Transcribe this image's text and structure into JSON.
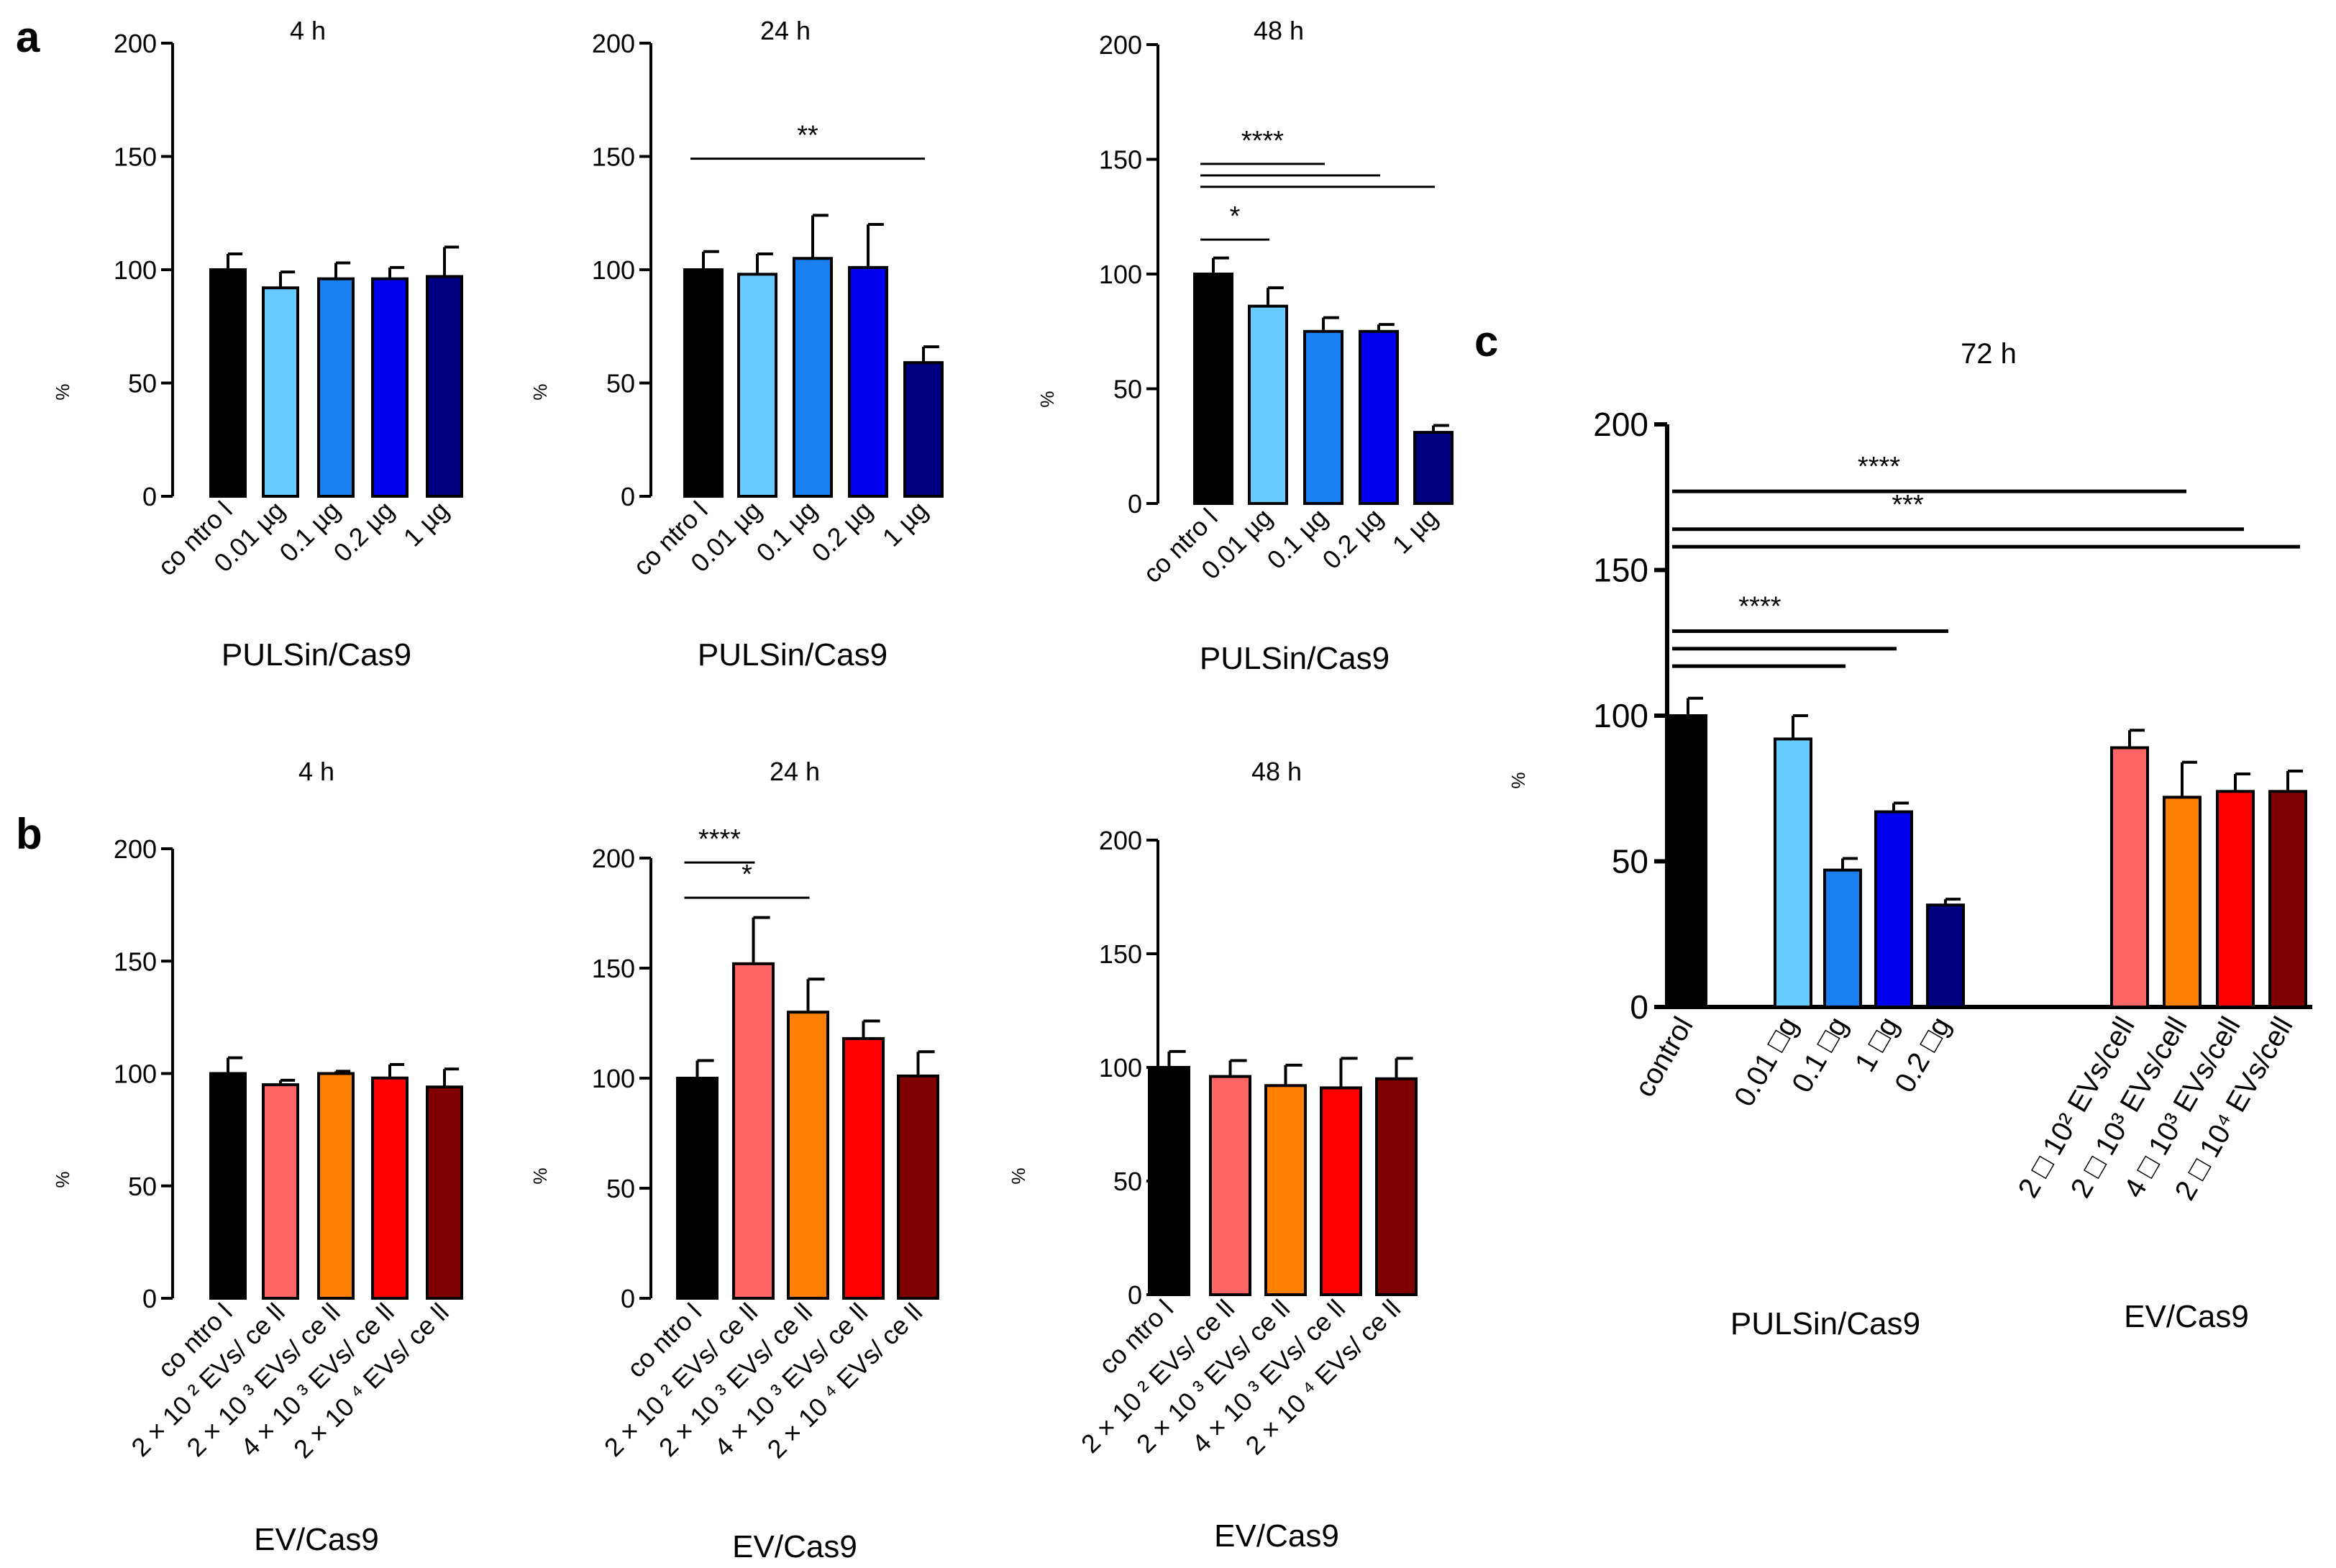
{
  "panel_labels": {
    "a": "a",
    "b": "b",
    "c": "c"
  },
  "y_axis_label": "%",
  "chart_data": [
    {
      "id": "a1",
      "panel": "a",
      "type": "bar",
      "title": "4 h",
      "xlabel": "PULSin/Cas9",
      "ylabel": "%",
      "ylim": [
        0,
        200
      ],
      "yticks": [
        0,
        50,
        100,
        150,
        200
      ],
      "categories": [
        "co ntro l",
        "0.01 µg",
        "0.1 µg",
        "0.2 µg",
        "1 µg"
      ],
      "values": [
        100,
        92,
        96,
        96,
        97
      ],
      "errors": [
        7,
        7,
        7,
        5,
        13
      ],
      "colors": [
        "#000000",
        "#66ccff",
        "#1a7ff0",
        "#0000ee",
        "#000080"
      ],
      "annotations": []
    },
    {
      "id": "a2",
      "panel": "a",
      "type": "bar",
      "title": "24 h",
      "xlabel": "PULSin/Cas9",
      "ylabel": "%",
      "ylim": [
        0,
        200
      ],
      "yticks": [
        0,
        50,
        100,
        150,
        200
      ],
      "categories": [
        "co ntro l",
        "0.01 µg",
        "0.1 µg",
        "0.2 µg",
        "1 µg"
      ],
      "values": [
        100,
        98,
        105,
        101,
        59
      ],
      "errors": [
        8,
        9,
        19,
        19,
        7
      ],
      "colors": [
        "#000000",
        "#66ccff",
        "#1a7ff0",
        "#0000ee",
        "#000080"
      ],
      "annotations": [
        {
          "from": 0,
          "to": 4,
          "y": 149,
          "label": "**"
        }
      ]
    },
    {
      "id": "a3",
      "panel": "a",
      "type": "bar",
      "title": "48 h",
      "xlabel": "PULSin/Cas9",
      "ylabel": "%",
      "ylim": [
        0,
        200
      ],
      "yticks": [
        0,
        50,
        100,
        150,
        200
      ],
      "categories": [
        "co ntro l",
        "0.01 µg",
        "0.1 µg",
        "0.2 µg",
        "1 µg"
      ],
      "values": [
        100,
        86,
        75,
        75,
        31
      ],
      "errors": [
        7,
        8,
        6,
        3,
        3
      ],
      "colors": [
        "#000000",
        "#66ccff",
        "#1a7ff0",
        "#0000ee",
        "#000080"
      ],
      "annotations": [
        {
          "from": 0,
          "to": 2,
          "y": 148,
          "label": "****"
        },
        {
          "from": 0,
          "to": 3,
          "y": 143,
          "label": ""
        },
        {
          "from": 0,
          "to": 4,
          "y": 138,
          "label": ""
        },
        {
          "from": 0,
          "to": 1,
          "y": 115,
          "label": "*"
        }
      ]
    },
    {
      "id": "b1",
      "panel": "b",
      "type": "bar",
      "title": "4 h",
      "xlabel": "EV/Cas9",
      "ylabel": "%",
      "ylim": [
        0,
        200
      ],
      "yticks": [
        0,
        50,
        100,
        150,
        200
      ],
      "categories": [
        "co ntro l",
        "2 × 10 ² EVs/ ce ll",
        "2 × 10 ³ EVs/ ce ll",
        "4 × 10 ³ EVs/ ce ll",
        "2 × 10 ⁴ EVs/ ce ll"
      ],
      "values": [
        100,
        95,
        100,
        98,
        94
      ],
      "errors": [
        7,
        2,
        1,
        6,
        8
      ],
      "colors": [
        "#000000",
        "#ff6666",
        "#ff8000",
        "#ff0000",
        "#800000"
      ],
      "annotations": []
    },
    {
      "id": "b2",
      "panel": "b",
      "type": "bar",
      "title": "24 h",
      "xlabel": "EV/Cas9",
      "ylabel": "%",
      "ylim": [
        0,
        200
      ],
      "yticks": [
        0,
        50,
        100,
        150,
        200
      ],
      "categories": [
        "co ntro l",
        "2 × 10 ² EVs/ ce ll",
        "2 × 10 ³ EVs/ ce ll",
        "4 × 10 ³ EVs/ ce ll",
        "2 × 10 ⁴ EVs/ ce ll"
      ],
      "values": [
        100,
        152,
        130,
        118,
        101
      ],
      "errors": [
        8,
        21,
        15,
        8,
        11
      ],
      "colors": [
        "#000000",
        "#ff6666",
        "#ff8000",
        "#ff0000",
        "#800000"
      ],
      "annotations": [
        {
          "from": 0,
          "to": 1,
          "y": 198,
          "label": "****"
        },
        {
          "from": 0,
          "to": 2,
          "y": 182,
          "label": "*"
        }
      ]
    },
    {
      "id": "b3",
      "panel": "b",
      "type": "bar",
      "title": "48 h",
      "xlabel": "EV/Cas9",
      "ylabel": "%",
      "ylim": [
        0,
        200
      ],
      "yticks": [
        0,
        50,
        100,
        150,
        200
      ],
      "categories": [
        "co ntro l",
        "2 × 10 ² EVs/ ce ll",
        "2 × 10 ³ EVs/ ce ll",
        "4 × 10 ³ EVs/ ce ll",
        "2 × 10 ⁴ EVs/ ce ll"
      ],
      "values": [
        100,
        96,
        92,
        91,
        95
      ],
      "errors": [
        7,
        7,
        9,
        13,
        9
      ],
      "colors": [
        "#000000",
        "#ff6666",
        "#ff8000",
        "#ff0000",
        "#800000"
      ],
      "annotations": []
    },
    {
      "id": "c",
      "panel": "c",
      "type": "bar",
      "title": "72 h",
      "ylabel": "%",
      "ylim": [
        0,
        200
      ],
      "yticks": [
        0,
        50,
        100,
        150,
        200
      ],
      "categories": [
        "control",
        "0.01 □g",
        "0.1 □g",
        "1 □g",
        "0.2 □g",
        "2 □ 10² EVs/cell",
        "2 □ 10³ EVs/cell",
        "4 □ 10³ EVs/cell",
        "2 □ 10⁴ EVs/cell"
      ],
      "group_labels": [
        {
          "label": "PULSin/Cas9",
          "from": 1,
          "to": 4
        },
        {
          "label": "EV/Cas9",
          "from": 5,
          "to": 8
        }
      ],
      "values": [
        100,
        92,
        47,
        67,
        35,
        89,
        72,
        74,
        74
      ],
      "errors": [
        6,
        8,
        4,
        3,
        2,
        6,
        12,
        6,
        7
      ],
      "colors": [
        "#000000",
        "#66ccff",
        "#1a7ff0",
        "#0000ee",
        "#000080",
        "#ff6666",
        "#ff8000",
        "#ff0000",
        "#800000"
      ],
      "annotations": [
        {
          "from": 0,
          "to": 7,
          "y": 177,
          "label": "****"
        },
        {
          "from": 0,
          "to": 8,
          "y": 164,
          "label": "***"
        },
        {
          "from": 0,
          "to": 9,
          "y": 158,
          "label": ""
        },
        {
          "from": 0,
          "to": 4,
          "y": 129,
          "label": "****"
        },
        {
          "from": 0,
          "to": 3,
          "y": 123,
          "label": ""
        },
        {
          "from": 0,
          "to": 2,
          "y": 117,
          "label": ""
        }
      ]
    }
  ]
}
